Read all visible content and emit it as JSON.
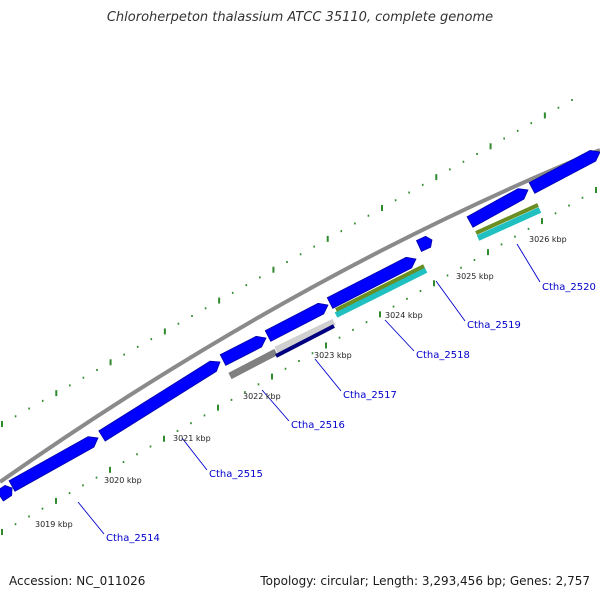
{
  "title": "Chloroherpeton thalassium ATCC 35110, complete genome",
  "footer": {
    "accession": "Accession: NC_011026",
    "summary": "Topology: circular; Length: 3,293,456 bp; Genes: 2,757"
  },
  "colors": {
    "backbone": "#8a8a8a",
    "cds": "#0000ff",
    "cds_outline": "#0000aa",
    "gene_label": "#0000cc",
    "tick": "#1f7a1f",
    "dots": "#2e8b2e",
    "hit_olive": "#6b8e23",
    "hit_cyan": "#20c0c0",
    "hit_gray": "#808080",
    "hit_light": "#d0d0d0",
    "hit_navy": "#000080"
  },
  "kbp_markers": [
    "3019 kbp",
    "3020 kbp",
    "3021 kbp",
    "3022 kbp",
    "3023 kbp",
    "3024 kbp",
    "3025 kbp",
    "3026 kbp"
  ],
  "gene_labels": [
    "Ctha_2514",
    "Ctha_2515",
    "Ctha_2516",
    "Ctha_2517",
    "Ctha_2518",
    "Ctha_2519",
    "Ctha_2520"
  ]
}
